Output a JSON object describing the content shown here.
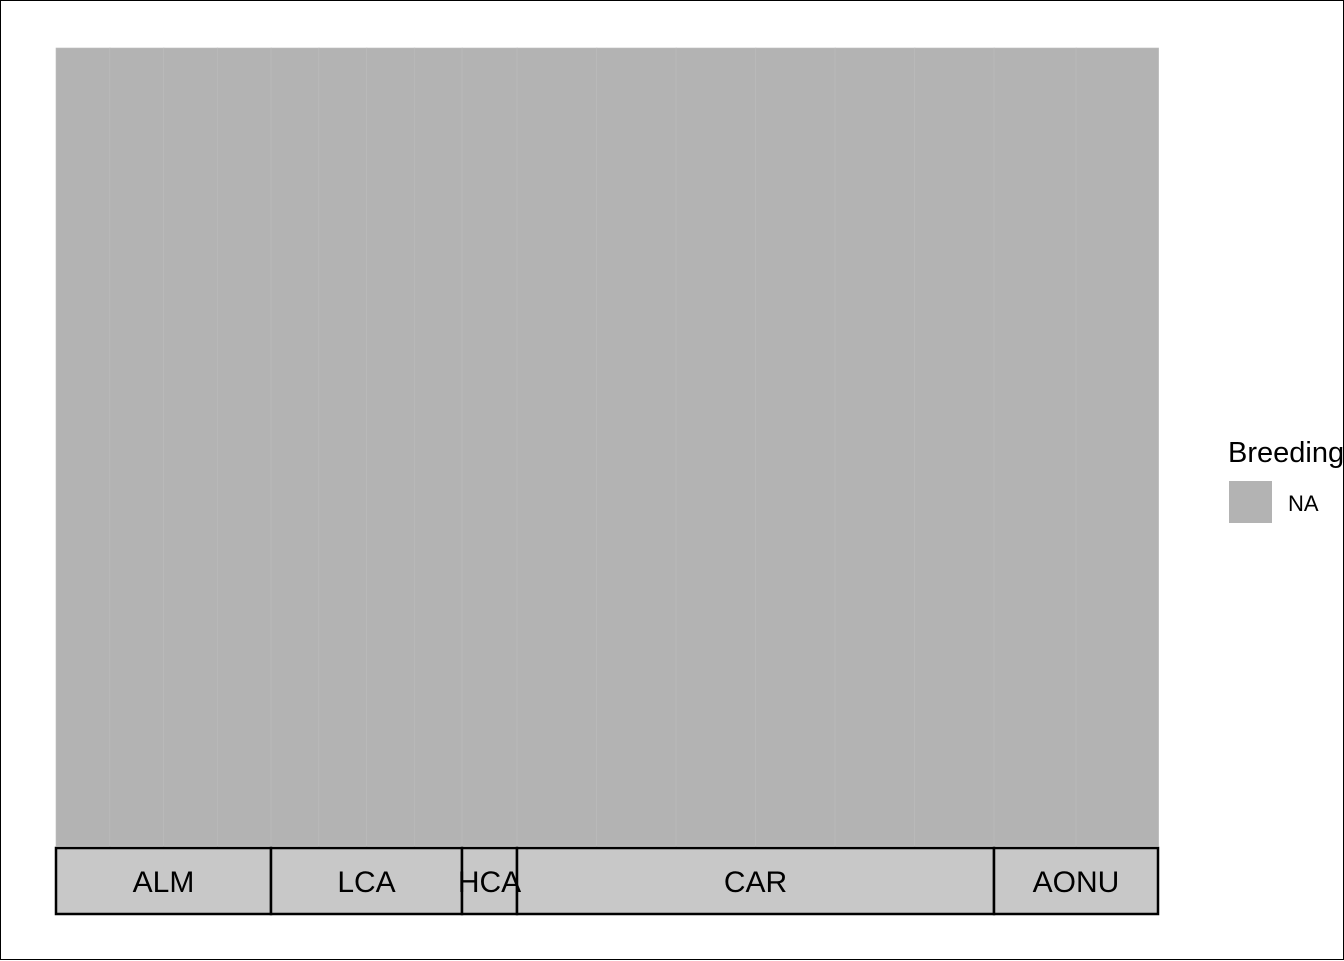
{
  "chart_data": {
    "type": "bar",
    "stacked": true,
    "panels": [
      {
        "label": "ALM",
        "bars": 4
      },
      {
        "label": "LCA",
        "bars": 4
      },
      {
        "label": "HCA",
        "bars": 1
      },
      {
        "label": "CAR",
        "bars": 6
      },
      {
        "label": "AONU",
        "bars": 2
      }
    ],
    "series": [
      {
        "name": "NA",
        "color": "#b3b3b3",
        "value": 1
      }
    ],
    "ylim": [
      0,
      1
    ],
    "legend": {
      "title": "Breeding",
      "position": "right",
      "entries": [
        "NA"
      ]
    },
    "strip_color": "#c8c8c8",
    "bar_color": "#b3b3b3"
  }
}
